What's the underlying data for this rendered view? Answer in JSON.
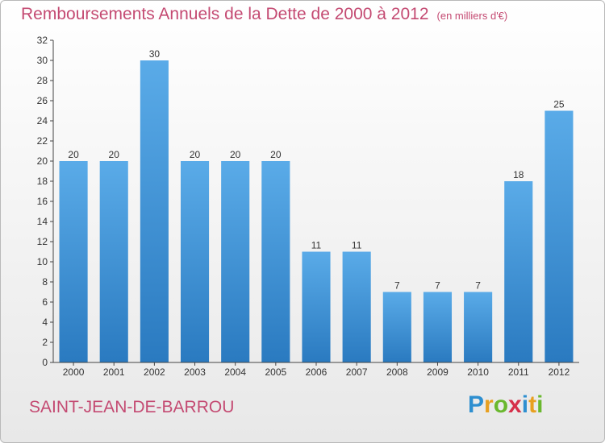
{
  "chart_data": {
    "type": "bar",
    "title": "Remboursements Annuels de la Dette de 2000 à 2012",
    "subtitle": "(en milliers d'€)",
    "categories": [
      "2000",
      "2001",
      "2002",
      "2003",
      "2004",
      "2005",
      "2006",
      "2007",
      "2008",
      "2009",
      "2010",
      "2011",
      "2012"
    ],
    "values": [
      20,
      20,
      30,
      20,
      20,
      20,
      11,
      11,
      7,
      7,
      7,
      18,
      25
    ],
    "ylim": [
      0,
      32
    ],
    "yticks": [
      0,
      2,
      4,
      6,
      8,
      10,
      12,
      14,
      16,
      18,
      20,
      22,
      24,
      26,
      28,
      30,
      32
    ],
    "grid": false,
    "bar_color": "#3d8fd6"
  },
  "commune": "SAINT-JEAN-DE-BARROU",
  "brand": {
    "letters": [
      "P",
      "r",
      "o",
      "x",
      "i",
      "t",
      "i"
    ],
    "colors": [
      "#2e8fd0",
      "#e8a020",
      "#6ab82e",
      "#d6304a",
      "#2e8fd0",
      "#e8a020",
      "#6ab82e"
    ]
  },
  "colors": {
    "title": "#c44a72",
    "axis": "#333333"
  }
}
